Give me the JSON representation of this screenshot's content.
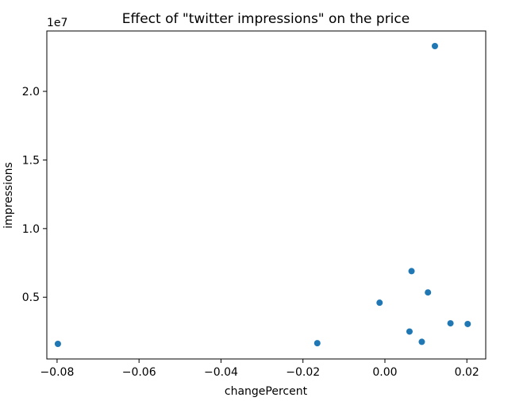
{
  "chart_data": {
    "type": "scatter",
    "title": "Effect of \"twitter impressions\" on the price",
    "xlabel": "changePercent",
    "ylabel": "impressions",
    "y_offset_label": "1e7",
    "xlim": [
      -0.0825,
      0.0246
    ],
    "ylim": [
      500000,
      24400000
    ],
    "x_ticks": [
      -0.08,
      -0.06,
      -0.04,
      -0.02,
      0.0,
      0.02
    ],
    "x_tick_labels": [
      "−0.08",
      "−0.06",
      "−0.04",
      "−0.02",
      "0.00",
      "0.02"
    ],
    "y_ticks": [
      5000000,
      10000000,
      15000000,
      20000000
    ],
    "y_tick_labels": [
      "0.5",
      "1.0",
      "1.5",
      "2.0"
    ],
    "grid": false,
    "marker_color": "#1f77b4",
    "points": [
      {
        "x": -0.0798,
        "y": 1600000
      },
      {
        "x": -0.0165,
        "y": 1650000
      },
      {
        "x": -0.0013,
        "y": 4600000
      },
      {
        "x": 0.006,
        "y": 2500000
      },
      {
        "x": 0.0065,
        "y": 6900000
      },
      {
        "x": 0.009,
        "y": 1750000
      },
      {
        "x": 0.0105,
        "y": 5350000
      },
      {
        "x": 0.0122,
        "y": 23300000
      },
      {
        "x": 0.016,
        "y": 3100000
      },
      {
        "x": 0.0202,
        "y": 3050000
      }
    ]
  }
}
